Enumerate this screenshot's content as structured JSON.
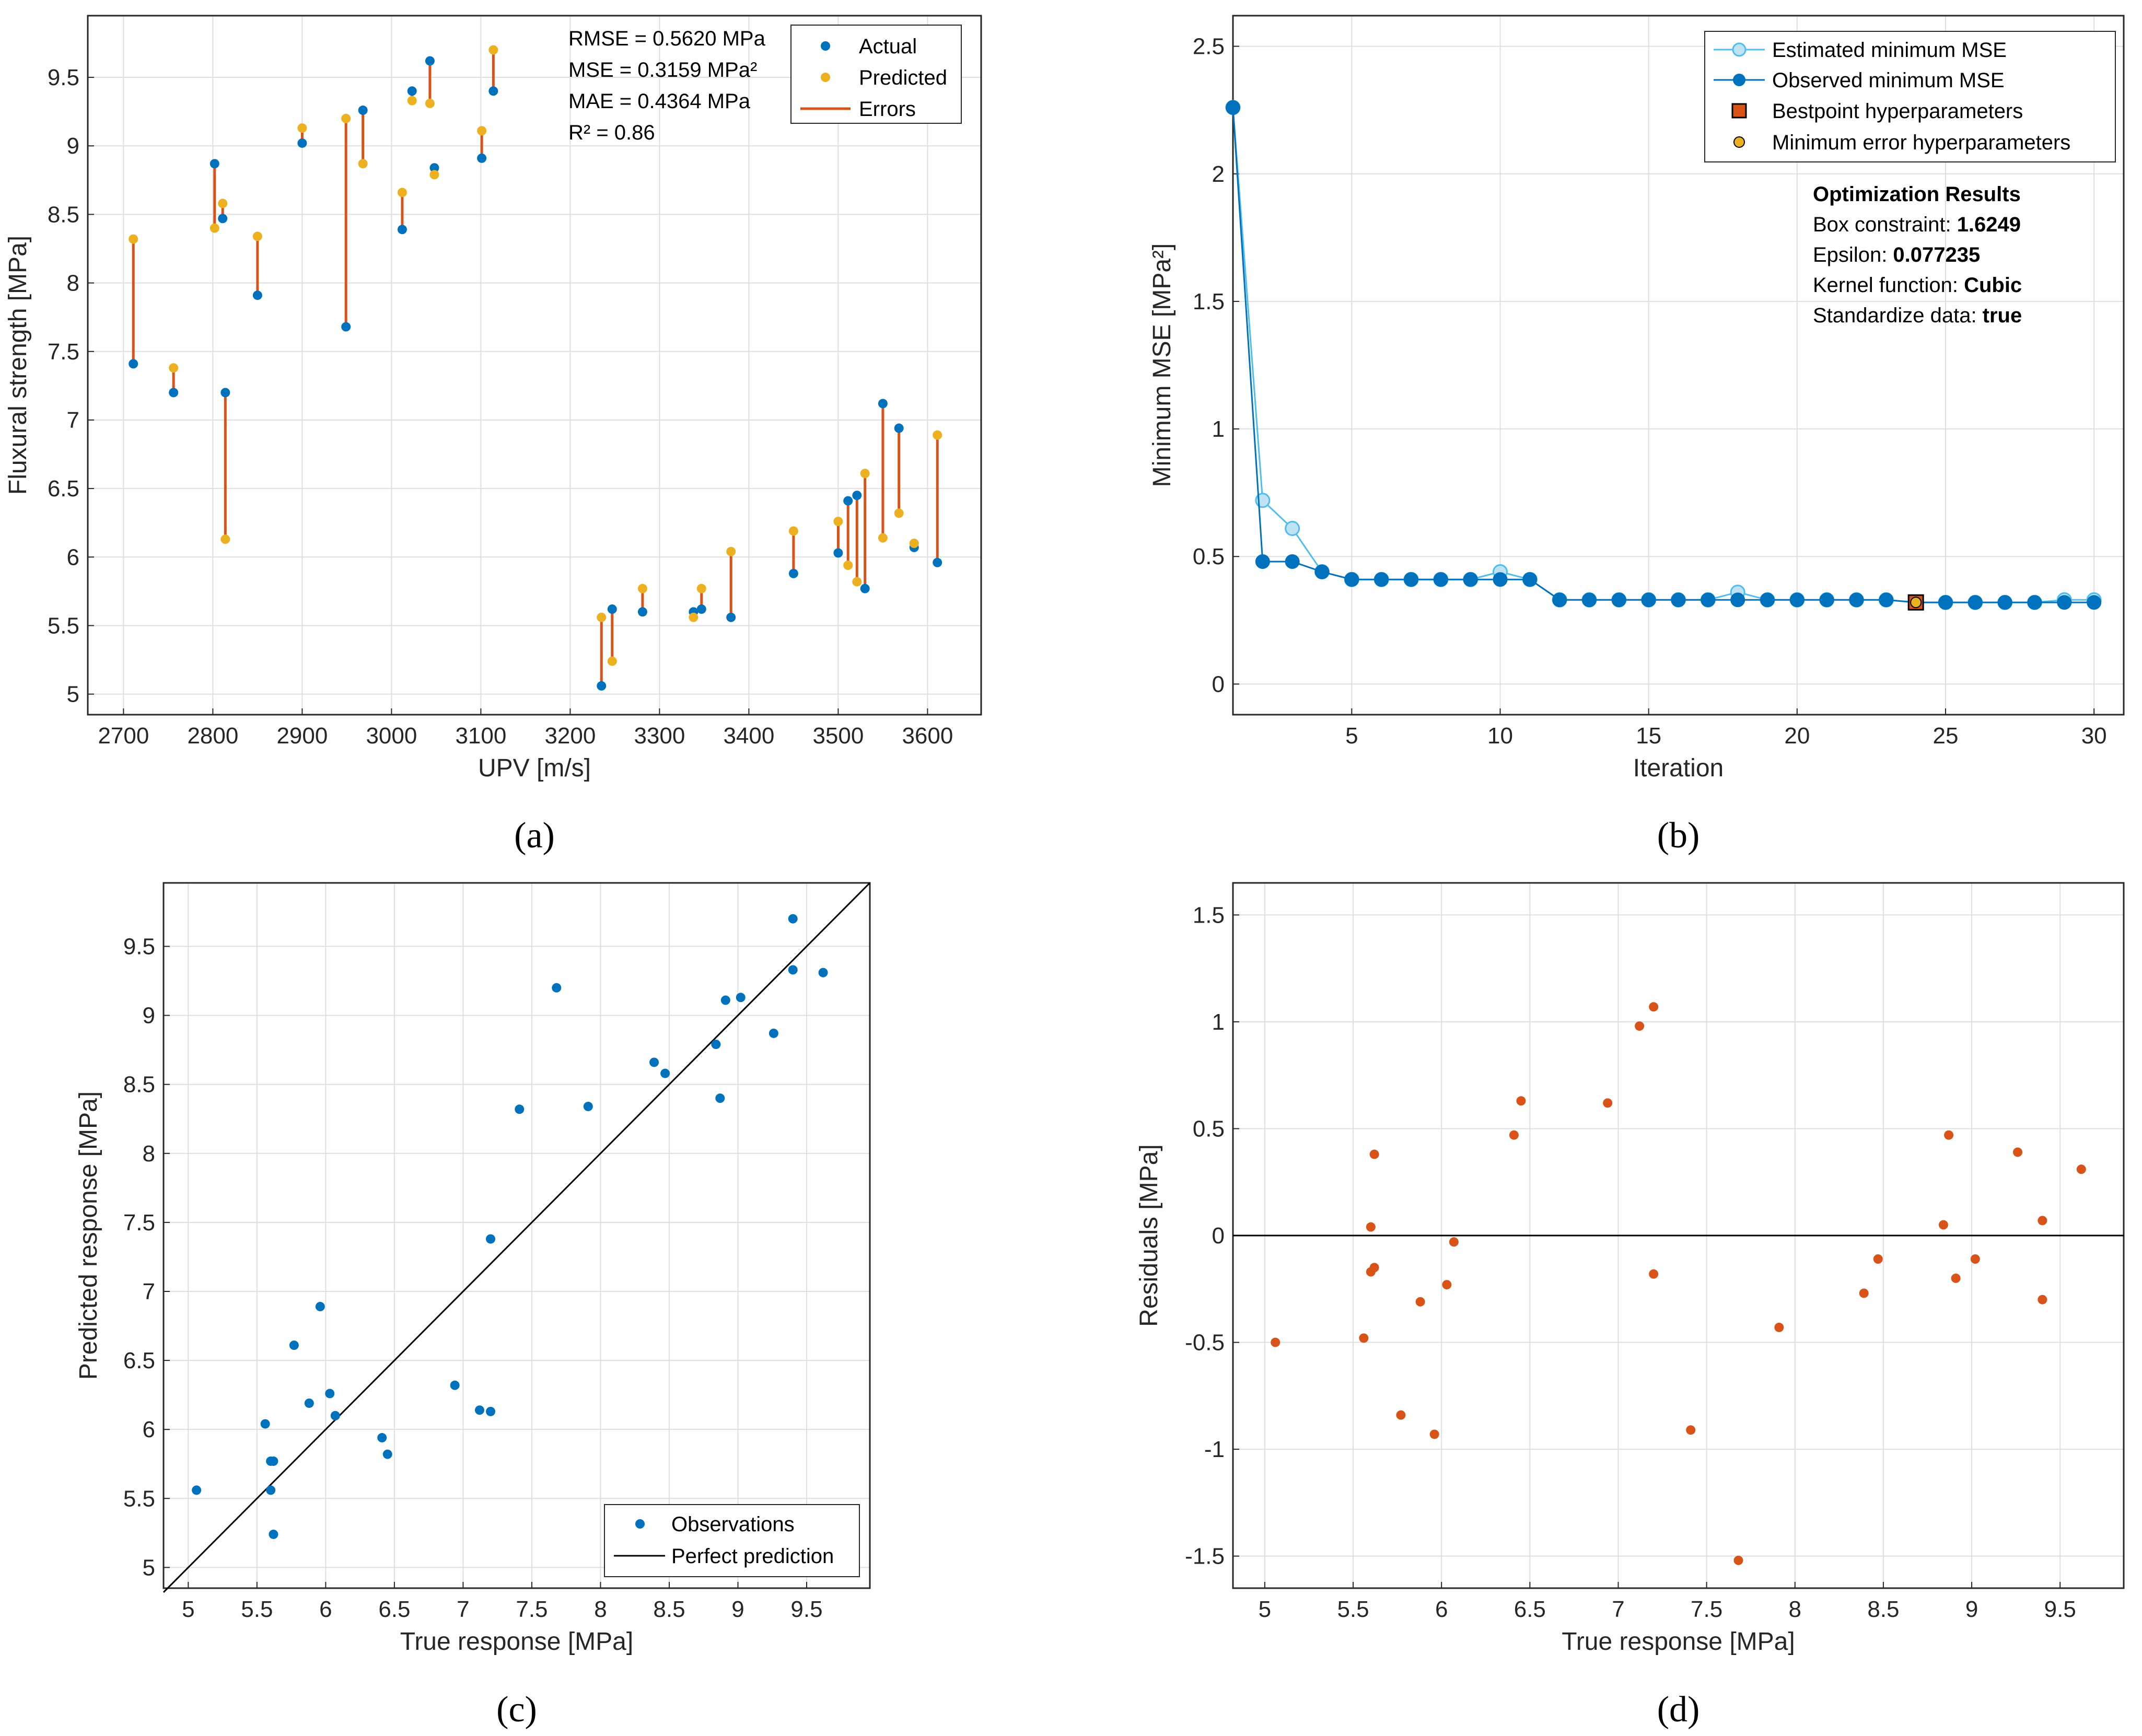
{
  "colors": {
    "actual": "#0072BD",
    "predicted": "#EDB120",
    "errors": "#D95319",
    "estimated": "#4DBEEE",
    "grid": "#dfdfdf",
    "axis": "#262626"
  },
  "chart_data": [
    {
      "id": "a",
      "type": "scatter",
      "caption": "a",
      "xlabel": "UPV [m/s]",
      "ylabel": "Fluxural strength [MPa]",
      "xlim": [
        2660,
        3660
      ],
      "ylim": [
        4.85,
        9.95
      ],
      "xticks": [
        2700,
        2800,
        2900,
        3000,
        3100,
        3200,
        3300,
        3400,
        3500,
        3600
      ],
      "yticks": [
        5,
        5.5,
        6,
        6.5,
        7,
        7.5,
        8,
        8.5,
        9,
        9.5
      ],
      "legend": {
        "position": "top-right",
        "entries": [
          "Actual",
          "Predicted",
          "Errors"
        ]
      },
      "stats": [
        "RMSE = 0.5620 MPa",
        "MSE = 0.3159 MPa²",
        "MAE = 0.4364 MPa",
        "R² = 0.86"
      ],
      "series": [
        {
          "name": "Actual",
          "x": [
            2711,
            2756,
            2802,
            2811,
            2814,
            2850,
            2900,
            2949,
            2968,
            3012,
            3023,
            3043,
            3048,
            3101,
            3114,
            3235,
            3247,
            3281,
            3338,
            3347,
            3380,
            3450,
            3500,
            3511,
            3521,
            3530,
            3550,
            3568,
            3585,
            3611
          ],
          "y": [
            7.41,
            7.2,
            8.87,
            8.47,
            7.2,
            7.91,
            9.02,
            7.68,
            9.26,
            8.39,
            9.4,
            9.62,
            8.84,
            8.91,
            9.4,
            5.06,
            5.62,
            5.6,
            5.6,
            5.62,
            5.56,
            5.88,
            6.03,
            6.41,
            6.45,
            5.77,
            7.12,
            6.94,
            6.07,
            5.96
          ]
        },
        {
          "name": "Predicted",
          "x": [
            2711,
            2756,
            2802,
            2811,
            2814,
            2850,
            2900,
            2949,
            2968,
            3012,
            3023,
            3043,
            3048,
            3101,
            3114,
            3235,
            3247,
            3281,
            3338,
            3347,
            3380,
            3450,
            3500,
            3511,
            3521,
            3530,
            3550,
            3568,
            3585,
            3611
          ],
          "y": [
            8.32,
            7.38,
            8.4,
            8.58,
            6.13,
            8.34,
            9.13,
            9.2,
            8.87,
            8.66,
            9.33,
            9.31,
            8.79,
            9.11,
            9.7,
            5.56,
            5.24,
            5.77,
            5.56,
            5.77,
            6.04,
            6.19,
            6.26,
            5.94,
            5.82,
            6.61,
            6.14,
            6.32,
            6.1,
            6.89
          ]
        }
      ]
    },
    {
      "id": "b",
      "type": "line",
      "caption": "b",
      "xlabel": "Iteration",
      "ylabel": "Minimum MSE [MPa²]",
      "xlim": [
        1,
        31
      ],
      "ylim": [
        -0.12,
        2.62
      ],
      "xticks": [
        5,
        10,
        15,
        20,
        25,
        30
      ],
      "yticks": [
        0,
        0.5,
        1,
        1.5,
        2,
        2.5
      ],
      "legend": {
        "position": "top-right",
        "entries": [
          "Estimated minimum MSE",
          "Observed minimum MSE",
          "Bestpoint hyperparameters",
          "Minimum error hyperparameters"
        ]
      },
      "results": {
        "title": "Optimization Results",
        "rows": [
          {
            "label": "Box constraint: ",
            "value": "1.6249"
          },
          {
            "label": "Epsilon: ",
            "value": "0.077235"
          },
          {
            "label": "Kernel function: ",
            "value": "Cubic"
          },
          {
            "label": "Standardize data: ",
            "value": "true"
          }
        ]
      },
      "x": [
        1,
        2,
        3,
        4,
        5,
        6,
        7,
        8,
        9,
        10,
        11,
        12,
        13,
        14,
        15,
        16,
        17,
        18,
        19,
        20,
        21,
        22,
        23,
        24,
        25,
        26,
        27,
        28,
        29,
        30
      ],
      "series": [
        {
          "name": "Estimated minimum MSE",
          "values": [
            2.26,
            0.72,
            0.61,
            0.44,
            0.41,
            0.41,
            0.41,
            0.41,
            0.41,
            0.44,
            0.41,
            0.33,
            0.33,
            0.33,
            0.33,
            0.33,
            0.33,
            0.36,
            0.33,
            0.33,
            0.33,
            0.33,
            0.33,
            0.32,
            0.32,
            0.32,
            0.32,
            0.32,
            0.33,
            0.33
          ]
        },
        {
          "name": "Observed minimum MSE",
          "values": [
            2.26,
            0.48,
            0.48,
            0.44,
            0.41,
            0.41,
            0.41,
            0.41,
            0.41,
            0.41,
            0.41,
            0.33,
            0.33,
            0.33,
            0.33,
            0.33,
            0.33,
            0.33,
            0.33,
            0.33,
            0.33,
            0.33,
            0.33,
            0.32,
            0.32,
            0.32,
            0.32,
            0.32,
            0.32,
            0.32
          ]
        }
      ],
      "bestpoint": {
        "x": 24,
        "y": 0.32
      },
      "minerror": {
        "x": 24,
        "y": 0.32
      }
    },
    {
      "id": "c",
      "type": "scatter",
      "caption": "c",
      "xlabel": "True response [MPa]",
      "ylabel": "Predicted response [MPa]",
      "xlim": [
        4.82,
        9.96
      ],
      "ylim": [
        4.85,
        9.96
      ],
      "xticks": [
        5,
        5.5,
        6,
        6.5,
        7,
        7.5,
        8,
        8.5,
        9,
        9.5
      ],
      "yticks": [
        5,
        5.5,
        6,
        6.5,
        7,
        7.5,
        8,
        8.5,
        9,
        9.5
      ],
      "legend": {
        "position": "bottom-right",
        "entries": [
          "Observations",
          "Perfect prediction"
        ]
      },
      "x": [
        7.41,
        7.2,
        8.87,
        8.47,
        7.2,
        7.91,
        9.02,
        7.68,
        9.26,
        8.39,
        9.4,
        9.62,
        8.84,
        8.91,
        9.4,
        5.06,
        5.62,
        5.6,
        5.6,
        5.62,
        5.56,
        5.88,
        6.03,
        6.41,
        6.45,
        5.77,
        7.12,
        6.94,
        6.07,
        5.96
      ],
      "y": [
        8.32,
        7.38,
        8.4,
        8.58,
        6.13,
        8.34,
        9.13,
        9.2,
        8.87,
        8.66,
        9.33,
        9.31,
        8.79,
        9.11,
        9.7,
        5.56,
        5.24,
        5.77,
        5.56,
        5.77,
        6.04,
        6.19,
        6.26,
        5.94,
        5.82,
        6.61,
        6.14,
        6.32,
        6.1,
        6.89
      ]
    },
    {
      "id": "d",
      "type": "scatter",
      "caption": "d",
      "xlabel": "True response [MPa]",
      "ylabel": "Residuals [MPa]",
      "xlim": [
        4.82,
        9.86
      ],
      "ylim": [
        -1.65,
        1.65
      ],
      "xticks": [
        5,
        5.5,
        6,
        6.5,
        7,
        7.5,
        8,
        8.5,
        9,
        9.5
      ],
      "yticks": [
        -1.5,
        -1,
        -0.5,
        0,
        0.5,
        1,
        1.5
      ],
      "x": [
        7.41,
        7.2,
        8.87,
        8.47,
        7.2,
        7.91,
        9.02,
        7.68,
        9.26,
        8.39,
        9.4,
        9.62,
        8.84,
        8.91,
        9.4,
        5.06,
        5.62,
        5.6,
        5.6,
        5.62,
        5.56,
        5.88,
        6.03,
        6.41,
        6.45,
        5.77,
        7.12,
        6.94,
        6.07,
        5.96
      ],
      "y": [
        -0.91,
        -0.18,
        0.47,
        -0.11,
        1.07,
        -0.43,
        -0.11,
        -1.52,
        0.39,
        -0.27,
        0.07,
        0.31,
        0.05,
        -0.2,
        -0.3,
        -0.5,
        0.38,
        -0.17,
        0.04,
        -0.15,
        -0.48,
        -0.31,
        -0.23,
        0.47,
        0.63,
        -0.84,
        0.98,
        0.62,
        -0.03,
        -0.93
      ]
    }
  ]
}
